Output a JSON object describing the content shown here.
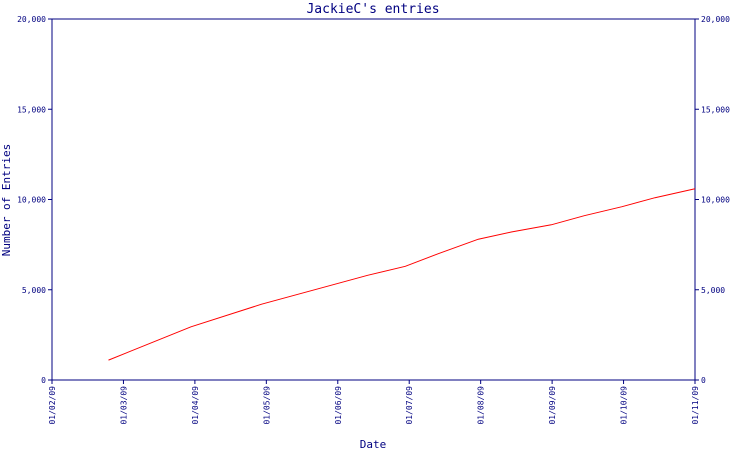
{
  "chart_data": {
    "type": "line",
    "title": "JackieC's entries",
    "xlabel": "Date",
    "ylabel": "Number of Entries",
    "x_ticks": [
      "01/02/09",
      "01/03/09",
      "01/04/09",
      "01/05/09",
      "01/06/09",
      "01/07/09",
      "01/08/09",
      "01/09/09",
      "01/10/09",
      "01/11/09"
    ],
    "x_range": [
      "2009-02-01",
      "2009-11-01"
    ],
    "y_ticks": [
      "0",
      "5,000",
      "10,000",
      "15,000",
      "20,000"
    ],
    "y_tick_values": [
      0,
      5000,
      10000,
      15000,
      20000
    ],
    "ylim": [
      0,
      20000
    ],
    "grid": false,
    "right_axis": true,
    "series": [
      {
        "color": "#ff0000",
        "points": [
          {
            "x": "2009-02-25",
            "y": 1100
          },
          {
            "x": "2009-04-01",
            "y": 2950
          },
          {
            "x": "2009-05-01",
            "y": 4200
          },
          {
            "x": "2009-06-01",
            "y": 5300
          },
          {
            "x": "2009-06-15",
            "y": 5800
          },
          {
            "x": "2009-07-01",
            "y": 6300
          },
          {
            "x": "2009-07-15",
            "y": 7000
          },
          {
            "x": "2009-08-01",
            "y": 7800
          },
          {
            "x": "2009-08-15",
            "y": 8200
          },
          {
            "x": "2009-09-01",
            "y": 8600
          },
          {
            "x": "2009-09-15",
            "y": 9100
          },
          {
            "x": "2009-10-01",
            "y": 9600
          },
          {
            "x": "2009-10-15",
            "y": 10100
          },
          {
            "x": "2009-11-01",
            "y": 10600
          }
        ]
      }
    ]
  }
}
